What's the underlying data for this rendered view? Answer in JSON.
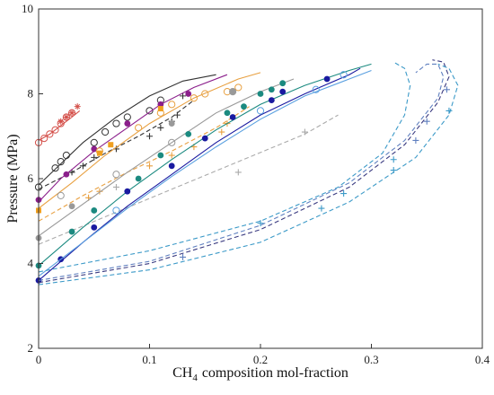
{
  "chart_data": {
    "type": "scatter",
    "xlabel": "composition mol-fraction",
    "xlabel_species": "CH",
    "xlabel_subscript": "4",
    "ylabel": "Pressure (MPa)",
    "xlim": [
      0,
      0.4
    ],
    "ylim": [
      2,
      10
    ],
    "xticks": [
      0,
      0.1,
      0.2,
      0.3,
      0.4
    ],
    "xtick_labels": [
      "0",
      "0.1",
      "0.2",
      "0.3",
      "0.4"
    ],
    "yticks": [
      2,
      4,
      6,
      8,
      10
    ],
    "ytick_labels": [
      "2",
      "4",
      "6",
      "8",
      "10"
    ],
    "series": [
      {
        "color": "#d4504a",
        "marker": "open-circle",
        "line": "solid",
        "curve": [
          [
            0,
            6.9
          ],
          [
            0.01,
            7.05
          ],
          [
            0.02,
            7.25
          ],
          [
            0.03,
            7.45
          ],
          [
            0.037,
            7.6
          ]
        ],
        "points": [
          [
            0,
            6.85
          ],
          [
            0.005,
            6.95
          ],
          [
            0.01,
            7.05
          ],
          [
            0.015,
            7.15
          ],
          [
            0.02,
            7.3
          ],
          [
            0.025,
            7.45
          ],
          [
            0.03,
            7.55
          ]
        ]
      },
      {
        "color": "#d4504a",
        "marker": "star",
        "line": "none",
        "curve": [],
        "points": [
          [
            0.02,
            7.35
          ],
          [
            0.025,
            7.45
          ],
          [
            0.03,
            7.55
          ],
          [
            0.035,
            7.7
          ]
        ]
      },
      {
        "color": "#333333",
        "marker": "open-circle",
        "line": "solid",
        "curve": [
          [
            0,
            5.85
          ],
          [
            0.02,
            6.35
          ],
          [
            0.04,
            6.85
          ],
          [
            0.07,
            7.45
          ],
          [
            0.1,
            7.95
          ],
          [
            0.13,
            8.3
          ],
          [
            0.16,
            8.45
          ]
        ],
        "points": [
          [
            0,
            5.8
          ],
          [
            0.015,
            6.25
          ],
          [
            0.02,
            6.4
          ],
          [
            0.025,
            6.55
          ],
          [
            0.05,
            6.85
          ],
          [
            0.06,
            7.1
          ],
          [
            0.07,
            7.3
          ],
          [
            0.08,
            7.45
          ],
          [
            0.1,
            7.6
          ],
          [
            0.11,
            7.85
          ]
        ]
      },
      {
        "color": "#333333",
        "marker": "plus",
        "line": "dashed",
        "curve": [
          [
            0,
            5.75
          ],
          [
            0.03,
            6.15
          ],
          [
            0.06,
            6.6
          ],
          [
            0.09,
            7.0
          ],
          [
            0.12,
            7.45
          ],
          [
            0.14,
            7.85
          ]
        ],
        "points": [
          [
            0.03,
            6.15
          ],
          [
            0.04,
            6.3
          ],
          [
            0.05,
            6.5
          ],
          [
            0.07,
            6.7
          ],
          [
            0.1,
            7.0
          ],
          [
            0.11,
            7.2
          ],
          [
            0.12,
            7.35
          ],
          [
            0.125,
            7.5
          ],
          [
            0.13,
            7.95
          ]
        ]
      },
      {
        "color": "#8b1e8b",
        "marker": "filled-circle",
        "line": "solid",
        "curve": [
          [
            0,
            5.45
          ],
          [
            0.02,
            6.0
          ],
          [
            0.05,
            6.65
          ],
          [
            0.08,
            7.2
          ],
          [
            0.11,
            7.75
          ],
          [
            0.14,
            8.15
          ],
          [
            0.17,
            8.45
          ]
        ],
        "points": [
          [
            0,
            5.5
          ],
          [
            0.025,
            6.1
          ],
          [
            0.05,
            6.7
          ],
          [
            0.08,
            7.3
          ],
          [
            0.11,
            7.75
          ],
          [
            0.135,
            8.0
          ]
        ]
      },
      {
        "color": "#e8a040",
        "marker": "open-circle",
        "line": "solid",
        "curve": [
          [
            0,
            5.3
          ],
          [
            0.03,
            5.9
          ],
          [
            0.06,
            6.55
          ],
          [
            0.1,
            7.3
          ],
          [
            0.14,
            7.9
          ],
          [
            0.18,
            8.35
          ],
          [
            0.2,
            8.5
          ]
        ],
        "points": [
          [
            0.055,
            6.65
          ],
          [
            0.09,
            7.2
          ],
          [
            0.11,
            7.55
          ],
          [
            0.12,
            7.75
          ],
          [
            0.14,
            7.9
          ],
          [
            0.15,
            8.0
          ],
          [
            0.17,
            8.05
          ],
          [
            0.18,
            8.15
          ]
        ]
      },
      {
        "color": "#f0a020",
        "marker": "filled-square",
        "line": "none",
        "curve": [],
        "points": [
          [
            0,
            5.25
          ],
          [
            0.055,
            6.6
          ],
          [
            0.065,
            6.8
          ],
          [
            0.11,
            7.65
          ]
        ]
      },
      {
        "color": "#e8a040",
        "marker": "plus",
        "line": "dashed",
        "curve": [
          [
            0,
            5.0
          ],
          [
            0.04,
            5.6
          ],
          [
            0.08,
            6.15
          ],
          [
            0.12,
            6.65
          ],
          [
            0.16,
            7.2
          ],
          [
            0.19,
            7.7
          ]
        ],
        "points": [
          [
            0.045,
            5.55
          ],
          [
            0.055,
            5.7
          ],
          [
            0.1,
            6.3
          ],
          [
            0.12,
            6.55
          ],
          [
            0.14,
            6.75
          ],
          [
            0.165,
            7.1
          ],
          [
            0.17,
            7.3
          ]
        ]
      },
      {
        "color": "#999999",
        "marker": "open-circle",
        "line": "solid",
        "curve": [
          [
            0,
            4.65
          ],
          [
            0.04,
            5.4
          ],
          [
            0.08,
            6.15
          ],
          [
            0.12,
            6.85
          ],
          [
            0.16,
            7.55
          ],
          [
            0.2,
            8.05
          ],
          [
            0.23,
            8.35
          ]
        ],
        "points": [
          [
            0.02,
            5.6
          ],
          [
            0.07,
            6.1
          ],
          [
            0.12,
            6.85
          ],
          [
            0.175,
            8.05
          ]
        ]
      },
      {
        "color": "#999999",
        "marker": "filled-circle",
        "line": "none",
        "curve": [],
        "points": [
          [
            0,
            4.6
          ],
          [
            0.03,
            5.35
          ],
          [
            0.12,
            7.3
          ],
          [
            0.175,
            8.05
          ]
        ]
      },
      {
        "color": "#aaaaaa",
        "marker": "plus",
        "line": "dashed",
        "curve": [
          [
            0,
            4.45
          ],
          [
            0.06,
            5.1
          ],
          [
            0.12,
            5.75
          ],
          [
            0.18,
            6.4
          ],
          [
            0.24,
            7.05
          ],
          [
            0.27,
            7.5
          ]
        ],
        "points": [
          [
            0.07,
            5.8
          ],
          [
            0.18,
            6.15
          ],
          [
            0.24,
            7.1
          ]
        ]
      },
      {
        "color": "#1b8a80",
        "marker": "filled-circle",
        "line": "solid",
        "curve": [
          [
            0,
            3.95
          ],
          [
            0.04,
            4.85
          ],
          [
            0.08,
            5.7
          ],
          [
            0.12,
            6.45
          ],
          [
            0.16,
            7.15
          ],
          [
            0.2,
            7.75
          ],
          [
            0.24,
            8.2
          ],
          [
            0.28,
            8.55
          ],
          [
            0.3,
            8.7
          ]
        ],
        "points": [
          [
            0,
            3.95
          ],
          [
            0.03,
            4.75
          ],
          [
            0.05,
            5.25
          ],
          [
            0.09,
            6.0
          ],
          [
            0.11,
            6.55
          ],
          [
            0.135,
            7.05
          ],
          [
            0.17,
            7.55
          ],
          [
            0.185,
            7.7
          ],
          [
            0.2,
            8.0
          ],
          [
            0.21,
            8.1
          ],
          [
            0.22,
            8.25
          ]
        ]
      },
      {
        "color": "#1a1aa0",
        "marker": "filled-circle",
        "line": "solid",
        "curve": [
          [
            0,
            3.6
          ],
          [
            0.04,
            4.5
          ],
          [
            0.08,
            5.35
          ],
          [
            0.12,
            6.1
          ],
          [
            0.16,
            6.85
          ],
          [
            0.2,
            7.5
          ],
          [
            0.24,
            8.0
          ],
          [
            0.28,
            8.45
          ],
          [
            0.29,
            8.6
          ]
        ],
        "points": [
          [
            0,
            3.6
          ],
          [
            0.02,
            4.1
          ],
          [
            0.05,
            4.85
          ],
          [
            0.08,
            5.7
          ],
          [
            0.12,
            6.3
          ],
          [
            0.15,
            6.95
          ],
          [
            0.175,
            7.45
          ],
          [
            0.21,
            7.85
          ],
          [
            0.22,
            8.05
          ],
          [
            0.26,
            8.35
          ]
        ]
      },
      {
        "color": "#5aa0e0",
        "marker": "open-circle",
        "line": "solid",
        "curve": [
          [
            0,
            3.7
          ],
          [
            0.04,
            4.5
          ],
          [
            0.08,
            5.3
          ],
          [
            0.12,
            6.05
          ],
          [
            0.16,
            6.75
          ],
          [
            0.2,
            7.4
          ],
          [
            0.24,
            7.95
          ],
          [
            0.28,
            8.35
          ],
          [
            0.3,
            8.55
          ]
        ],
        "points": [
          [
            0.07,
            5.25
          ],
          [
            0.2,
            7.6
          ],
          [
            0.25,
            8.1
          ],
          [
            0.275,
            8.45
          ]
        ]
      },
      {
        "color": "#6080c0",
        "marker": "plus",
        "line": "dashed",
        "curve": [
          [
            0,
            3.6
          ],
          [
            0.1,
            4.05
          ],
          [
            0.2,
            4.9
          ],
          [
            0.28,
            5.9
          ],
          [
            0.33,
            6.9
          ],
          [
            0.36,
            7.9
          ],
          [
            0.365,
            8.4
          ],
          [
            0.36,
            8.7
          ],
          [
            0.35,
            8.7
          ],
          [
            0.34,
            8.5
          ]
        ],
        "points": [
          [
            0.13,
            4.15
          ],
          [
            0.34,
            6.9
          ],
          [
            0.35,
            7.35
          ],
          [
            0.368,
            8.1
          ]
        ]
      },
      {
        "color": "#3a3a80",
        "marker": "none",
        "line": "dashed",
        "curve": [
          [
            0,
            3.55
          ],
          [
            0.1,
            4.0
          ],
          [
            0.2,
            4.8
          ],
          [
            0.28,
            5.8
          ],
          [
            0.33,
            6.8
          ],
          [
            0.36,
            7.8
          ],
          [
            0.37,
            8.4
          ],
          [
            0.365,
            8.75
          ],
          [
            0.355,
            8.8
          ]
        ],
        "points": []
      },
      {
        "color": "#3c9ac8",
        "marker": "plus",
        "line": "dashed",
        "curve": [
          [
            0,
            3.8
          ],
          [
            0.1,
            4.3
          ],
          [
            0.2,
            5.0
          ],
          [
            0.27,
            5.8
          ],
          [
            0.31,
            6.6
          ],
          [
            0.33,
            7.5
          ],
          [
            0.335,
            8.2
          ],
          [
            0.33,
            8.6
          ],
          [
            0.32,
            8.75
          ]
        ],
        "points": [
          [
            0.2,
            4.95
          ],
          [
            0.255,
            5.3
          ],
          [
            0.275,
            5.65
          ],
          [
            0.32,
            6.2
          ],
          [
            0.32,
            6.45
          ],
          [
            0.37,
            7.6
          ]
        ]
      },
      {
        "color": "#3c9ac8",
        "marker": "none",
        "line": "dashed",
        "curve": [
          [
            0,
            3.5
          ],
          [
            0.1,
            3.85
          ],
          [
            0.2,
            4.5
          ],
          [
            0.28,
            5.45
          ],
          [
            0.34,
            6.5
          ],
          [
            0.37,
            7.5
          ],
          [
            0.378,
            8.2
          ],
          [
            0.37,
            8.6
          ],
          [
            0.36,
            8.7
          ]
        ],
        "points": []
      }
    ]
  }
}
